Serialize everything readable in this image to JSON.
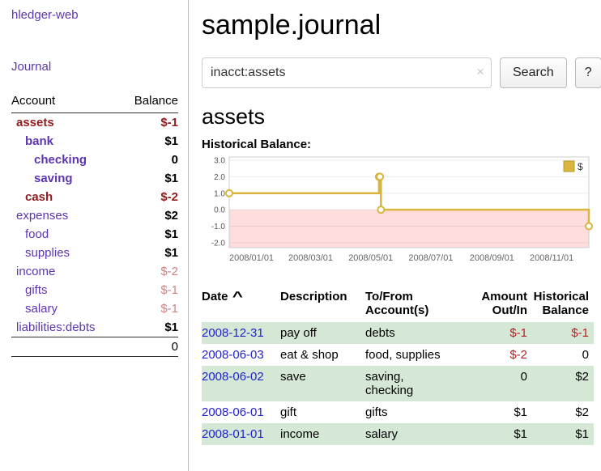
{
  "colors": {
    "purple": "#5e35b1",
    "blue": "#2222cc",
    "neg_strong": "#8f1d1d",
    "neg_pale": "#c98585",
    "neg_red": "#b22222",
    "row_green": "#d5e8d5",
    "chart_line": "#d9b53f",
    "chart_neg_fill": "#ffdddd",
    "border": "#bbbbbb"
  },
  "sidebar": {
    "app_title": "hledger-web",
    "nav_journal": "Journal",
    "accounts": {
      "header_account": "Account",
      "header_balance": "Balance",
      "rows": [
        {
          "name": "assets",
          "depth": 0,
          "in_filter": true,
          "negative": true,
          "balance": "$-1"
        },
        {
          "name": "bank",
          "depth": 1,
          "in_filter": true,
          "negative": false,
          "balance": "$1"
        },
        {
          "name": "checking",
          "depth": 2,
          "in_filter": true,
          "negative": false,
          "balance": "0"
        },
        {
          "name": "saving",
          "depth": 2,
          "in_filter": true,
          "negative": false,
          "balance": "$1"
        },
        {
          "name": "cash",
          "depth": 1,
          "in_filter": true,
          "negative": true,
          "balance": "$-2"
        },
        {
          "name": "expenses",
          "depth": 0,
          "in_filter": false,
          "negative": false,
          "balance": "$2"
        },
        {
          "name": "food",
          "depth": 1,
          "in_filter": false,
          "negative": false,
          "balance": "$1"
        },
        {
          "name": "supplies",
          "depth": 1,
          "in_filter": false,
          "negative": false,
          "balance": "$1"
        },
        {
          "name": "income",
          "depth": 0,
          "in_filter": false,
          "negative": true,
          "balance": "$-2"
        },
        {
          "name": "gifts",
          "depth": 1,
          "in_filter": false,
          "negative": true,
          "balance": "$-1"
        },
        {
          "name": "salary",
          "depth": 1,
          "in_filter": false,
          "negative": true,
          "balance": "$-1"
        },
        {
          "name": "liabilities:debts",
          "depth": 0,
          "in_filter": false,
          "negative": false,
          "balance": "$1"
        }
      ],
      "total": "0"
    }
  },
  "header": {
    "title": "sample.journal"
  },
  "search": {
    "value": "inacct:assets",
    "clear_label": "×",
    "button_label": "Search",
    "help_label": "?"
  },
  "register": {
    "heading": "assets",
    "chart_label": "Historical Balance:"
  },
  "chart_data": {
    "type": "line",
    "step": true,
    "title": "Historical Balance:",
    "series": [
      {
        "name": "$",
        "points": [
          {
            "date": "2008-01-01",
            "day": 0,
            "value": 1
          },
          {
            "date": "2008-06-01",
            "day": 152,
            "value": 2
          },
          {
            "date": "2008-06-02",
            "day": 153,
            "value": 2
          },
          {
            "date": "2008-06-03",
            "day": 154,
            "value": 0
          },
          {
            "date": "2008-12-31",
            "day": 365,
            "value": -1
          }
        ]
      }
    ],
    "x_ticks": [
      {
        "label": "2008/01/01",
        "day": 0
      },
      {
        "label": "2008/03/01",
        "day": 60
      },
      {
        "label": "2008/05/01",
        "day": 121
      },
      {
        "label": "2008/07/01",
        "day": 182
      },
      {
        "label": "2008/09/01",
        "day": 244
      },
      {
        "label": "2008/11/01",
        "day": 305
      }
    ],
    "y_ticks": [
      3.0,
      2.0,
      1.0,
      0.0,
      -1.0,
      -2.0
    ],
    "x_domain_days": [
      0,
      365
    ],
    "ylim": [
      -2.3,
      3.2
    ],
    "legend": {
      "position": "top-right",
      "label": "$"
    },
    "negative_region_shaded": true,
    "xlabel": "",
    "ylabel": ""
  },
  "transactions": {
    "header_date": "Date",
    "sort_indicator": "^",
    "header_description": "Description",
    "header_account": "To/From\nAccount(s)",
    "header_amount": "Amount\nOut/In",
    "header_balance": "Historical\nBalance",
    "rows": [
      {
        "date": "2008-12-31",
        "description": "pay off",
        "account": "debts",
        "amount": "$-1",
        "amount_negative": true,
        "balance": "$-1",
        "balance_negative": true,
        "shaded": true
      },
      {
        "date": "2008-06-03",
        "description": "eat & shop",
        "account": "food, supplies",
        "amount": "$-2",
        "amount_negative": true,
        "balance": "0",
        "balance_negative": false,
        "shaded": false
      },
      {
        "date": "2008-06-02",
        "description": "save",
        "account": "saving,\nchecking",
        "amount": "0",
        "amount_negative": false,
        "balance": "$2",
        "balance_negative": false,
        "shaded": true
      },
      {
        "date": "2008-06-01",
        "description": "gift",
        "account": "gifts",
        "amount": "$1",
        "amount_negative": false,
        "balance": "$2",
        "balance_negative": false,
        "shaded": false
      },
      {
        "date": "2008-01-01",
        "description": "income",
        "account": "salary",
        "amount": "$1",
        "amount_negative": false,
        "balance": "$1",
        "balance_negative": false,
        "shaded": true
      }
    ]
  }
}
